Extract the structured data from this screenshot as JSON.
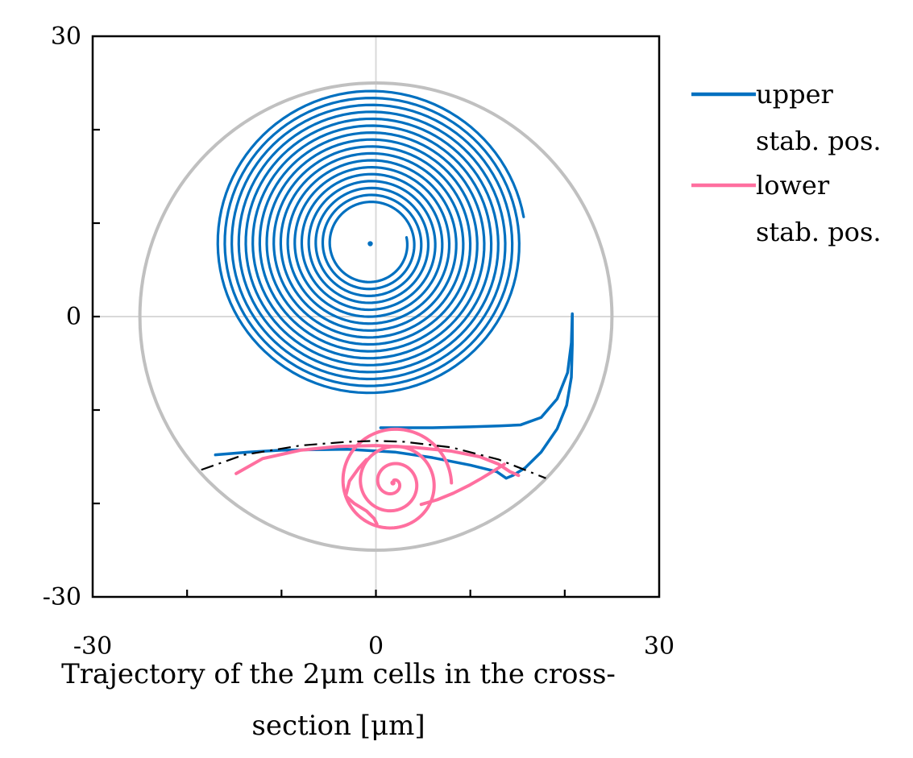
{
  "chart_data": {
    "type": "line",
    "title": "",
    "xlabel_lines": [
      "Trajectory of the 2μm cells in the cross-",
      "section [μm]"
    ],
    "ylabel": "",
    "xlim": [
      -30,
      30
    ],
    "ylim": [
      -30,
      30
    ],
    "x_ticks": [
      -30,
      0,
      30
    ],
    "y_ticks": [
      30,
      0,
      -30
    ],
    "grid": "zero-lines",
    "legend_position": "right",
    "colors": {
      "upper": "#0070c0",
      "lower": "#ff6f9f",
      "channel": "#c0c0c0",
      "dashed": "#000000",
      "grid": "#d9d9d9"
    },
    "channel_wall": {
      "shape": "circle",
      "center": [
        0,
        0
      ],
      "radius": 25
    },
    "dashed_boundary": {
      "x": [
        -18.5,
        -14,
        -8,
        -3,
        0,
        3,
        8,
        13,
        18
      ],
      "y": [
        -16.4,
        -14.8,
        -13.8,
        -13.4,
        -13.3,
        -13.4,
        -14.0,
        -15.3,
        -17.3
      ]
    },
    "series": [
      {
        "name": "upper stab. pos.",
        "color": "#0070c0",
        "spiral": {
          "center": [
            -0.6,
            7.8
          ],
          "inner_radius": 3.9,
          "outer_radius": 16.5,
          "turns": 17,
          "start_angle_deg": 10
        },
        "approach_paths": [
          {
            "x": [
              20.8,
              20.8,
              20.7,
              20.2,
              19.2,
              17.5,
              15.8,
              14.5,
              13.8,
              12.8,
              10,
              6,
              2,
              -3,
              -10,
              -13.5,
              -17
            ],
            "y": [
              0.2,
              -3,
              -6.5,
              -9.5,
              -12,
              -14.5,
              -16.2,
              -17,
              -17.3,
              -16.6,
              -15.9,
              -15.1,
              -14.5,
              -14.2,
              -14.3,
              -14.5,
              -14.8
            ]
          },
          {
            "x": [
              20.8,
              20.7,
              20.3,
              19.2,
              17.5,
              15.3,
              13,
              10,
              6,
              2.5,
              0.5
            ],
            "y": [
              0.3,
              -2.8,
              -6.0,
              -8.8,
              -10.8,
              -11.6,
              -11.7,
              -11.8,
              -11.9,
              -11.9,
              -11.9
            ]
          }
        ]
      },
      {
        "name": "lower stab. pos.",
        "color": "#ff6f9f",
        "spiral": {
          "center": [
            1.8,
            -17.8
          ],
          "inner_radius": 0.3,
          "outer_radius": 6.2,
          "turns": 3.2,
          "start_angle_deg": 0
        },
        "approach_paths": [
          {
            "x": [
              -14.8,
              -12,
              -8,
              -4,
              0,
              4,
              8,
              11,
              13,
              14.2,
              15.1
            ],
            "y": [
              -16.8,
              -15.2,
              -14.3,
              -13.9,
              -13.8,
              -14.0,
              -14.4,
              -15.0,
              -15.8,
              -16.6,
              -17.0
            ]
          },
          {
            "x": [
              13.6,
              12.5,
              11.2,
              9.8,
              8.2,
              6.5,
              4.8
            ],
            "y": [
              -15.8,
              -16.5,
              -17.3,
              -18.1,
              -18.9,
              -19.6,
              -20.1
            ]
          },
          {
            "x": [
              -1.0,
              -1.8,
              -2.8,
              -3.2,
              -2.3,
              -1.0,
              -0.2,
              0.1
            ],
            "y": [
              -15.3,
              -16.2,
              -17.6,
              -19.2,
              -20.0,
              -20.8,
              -21.6,
              -22.2
            ]
          }
        ]
      }
    ]
  }
}
